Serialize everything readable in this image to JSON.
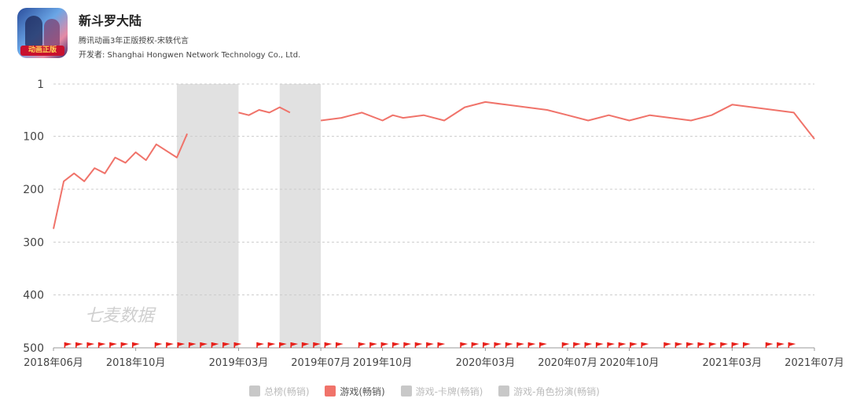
{
  "app": {
    "title": "新斗罗大陆",
    "subtitle": "腾讯动画3年正版授权-宋轶代言",
    "developer": "开发者: Shanghai Hongwen Network Technology Co., Ltd.",
    "icon_badge": "动画正版",
    "icon_name": "app-icon"
  },
  "watermark": "七麦数据",
  "colors": {
    "line": "#f0736a",
    "flag": "#e8201a",
    "gap": "#e1e1e1",
    "legend_inactive": "#c8c8c8",
    "grid": "#cccccc"
  },
  "legend": [
    {
      "label": "总榜(畅销)",
      "active": false
    },
    {
      "label": "游戏(畅销)",
      "active": true
    },
    {
      "label": "游戏-卡牌(畅销)",
      "active": false
    },
    {
      "label": "游戏-角色扮演(畅销)",
      "active": false
    }
  ],
  "chart_data": {
    "type": "line",
    "title": "",
    "xlabel": "",
    "ylabel": "",
    "y_inverted": true,
    "ylim": [
      1,
      500
    ],
    "yticks": [
      1,
      100,
      200,
      300,
      400,
      500
    ],
    "xlim": [
      "2018-06",
      "2021-07"
    ],
    "xticks": [
      "2018年06月",
      "2018年10月",
      "2019年03月",
      "2019年07月",
      "2019年10月",
      "2020年03月",
      "2020年07月",
      "2020年10月",
      "2021年03月",
      "2021年07月"
    ],
    "grid": true,
    "legend_position": "bottom",
    "gaps": [
      [
        "2018-12",
        "2019-03"
      ],
      [
        "2019-05",
        "2019-07"
      ]
    ],
    "series": [
      {
        "name": "游戏(畅销)",
        "points": [
          [
            "2018-06",
            275
          ],
          [
            "2018-06",
            185
          ],
          [
            "2018-07",
            170
          ],
          [
            "2018-07",
            185
          ],
          [
            "2018-08",
            160
          ],
          [
            "2018-08",
            170
          ],
          [
            "2018-09",
            140
          ],
          [
            "2018-09",
            150
          ],
          [
            "2018-10",
            130
          ],
          [
            "2018-10",
            145
          ],
          [
            "2018-11",
            115
          ],
          [
            "2018-12",
            140
          ],
          [
            "2018-12",
            95
          ],
          null,
          [
            "2019-03",
            55
          ],
          [
            "2019-03",
            60
          ],
          [
            "2019-04",
            50
          ],
          [
            "2019-04",
            55
          ],
          [
            "2019-05",
            45
          ],
          [
            "2019-05",
            55
          ],
          null,
          [
            "2019-07",
            70
          ],
          [
            "2019-08",
            65
          ],
          [
            "2019-08",
            60
          ],
          [
            "2019-09",
            55
          ],
          [
            "2019-10",
            70
          ],
          [
            "2019-10",
            60
          ],
          [
            "2019-11",
            65
          ],
          [
            "2019-12",
            60
          ],
          [
            "2020-01",
            70
          ],
          [
            "2020-02",
            45
          ],
          [
            "2020-03",
            35
          ],
          [
            "2020-04",
            40
          ],
          [
            "2020-05",
            45
          ],
          [
            "2020-06",
            50
          ],
          [
            "2020-07",
            60
          ],
          [
            "2020-08",
            70
          ],
          [
            "2020-09",
            60
          ],
          [
            "2020-10",
            70
          ],
          [
            "2020-10",
            65
          ],
          [
            "2020-11",
            60
          ],
          [
            "2020-12",
            65
          ],
          [
            "2021-01",
            70
          ],
          [
            "2021-02",
            60
          ],
          [
            "2021-03",
            40
          ],
          [
            "2021-04",
            45
          ],
          [
            "2021-05",
            50
          ],
          [
            "2021-06",
            55
          ],
          [
            "2021-07",
            105
          ]
        ]
      }
    ]
  }
}
